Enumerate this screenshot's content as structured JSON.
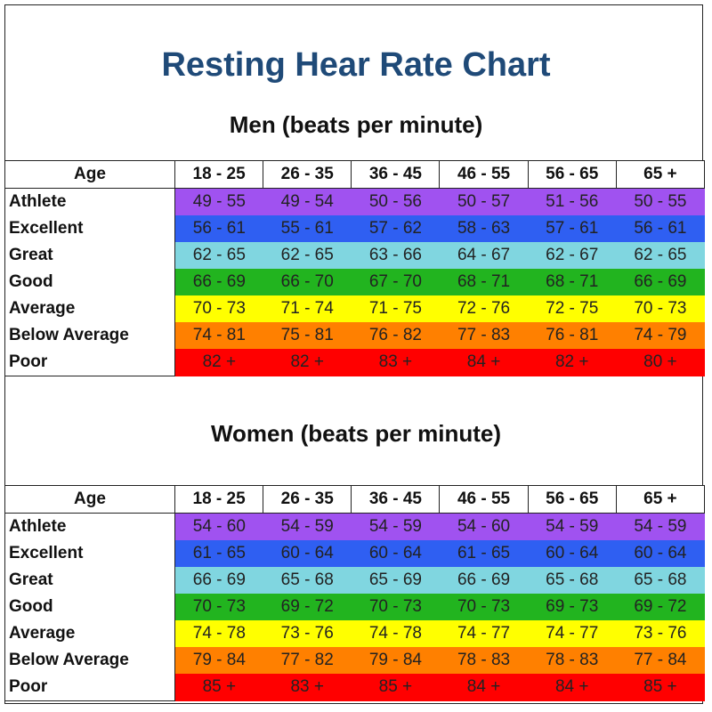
{
  "title": "Resting Hear Rate Chart",
  "chart_data": {
    "type": "table",
    "title": "Resting Hear Rate Chart",
    "tables": [
      {
        "subtitle": "Men (beats per minute)",
        "header": [
          "Age",
          "18 - 25",
          "26 - 35",
          "36 - 45",
          "46 - 55",
          "56 - 65",
          "65 +"
        ],
        "rows": [
          {
            "label": "Athlete",
            "values": [
              "49 - 55",
              "49 - 54",
              "50 - 56",
              "50 - 57",
              "51 - 56",
              "50 - 55"
            ]
          },
          {
            "label": "Excellent",
            "values": [
              "56 - 61",
              "55 - 61",
              "57 - 62",
              "58 - 63",
              "57 - 61",
              "56 - 61"
            ]
          },
          {
            "label": "Great",
            "values": [
              "62 - 65",
              "62 - 65",
              "63 - 66",
              "64 - 67",
              "62 - 67",
              "62 - 65"
            ]
          },
          {
            "label": "Good",
            "values": [
              "66 - 69",
              "66 - 70",
              "67 - 70",
              "68 - 71",
              "68 - 71",
              "66 - 69"
            ]
          },
          {
            "label": "Average",
            "values": [
              "70 - 73",
              "71 - 74",
              "71 - 75",
              "72 - 76",
              "72 - 75",
              "70 - 73"
            ]
          },
          {
            "label": "Below Average",
            "values": [
              "74 - 81",
              "75 - 81",
              "76 - 82",
              "77 - 83",
              "76 - 81",
              "74 - 79"
            ]
          },
          {
            "label": "Poor",
            "values": [
              "82 +",
              "82 +",
              "83 +",
              "84 +",
              "82 +",
              "80 +"
            ]
          }
        ]
      },
      {
        "subtitle": "Women (beats per minute)",
        "header": [
          "Age",
          "18 - 25",
          "26 - 35",
          "36 - 45",
          "46 - 55",
          "56 - 65",
          "65 +"
        ],
        "rows": [
          {
            "label": "Athlete",
            "values": [
              "54 - 60",
              "54 - 59",
              "54 - 59",
              "54 - 60",
              "54 - 59",
              "54 - 59"
            ]
          },
          {
            "label": "Excellent",
            "values": [
              "61 - 65",
              "60 - 64",
              "60 - 64",
              "61 - 65",
              "60 - 64",
              "60 - 64"
            ]
          },
          {
            "label": "Great",
            "values": [
              "66 - 69",
              "65 - 68",
              "65 - 69",
              "66 - 69",
              "65 - 68",
              "65 - 68"
            ]
          },
          {
            "label": "Good",
            "values": [
              "70 - 73",
              "69 - 72",
              "70 - 73",
              "70 - 73",
              "69 - 73",
              "69 - 72"
            ]
          },
          {
            "label": "Average",
            "values": [
              "74 - 78",
              "73 - 76",
              "74 - 78",
              "74 - 77",
              "74 - 77",
              "73 - 76"
            ]
          },
          {
            "label": "Below Average",
            "values": [
              "79 - 84",
              "77 - 82",
              "79 - 84",
              "78 - 83",
              "78 - 83",
              "77 - 84"
            ]
          },
          {
            "label": "Poor",
            "values": [
              "85 +",
              "83 +",
              "85 +",
              "84 +",
              "84 +",
              "85 +"
            ]
          }
        ]
      }
    ]
  },
  "colors": {
    "title": "#1f4a78",
    "rows": [
      "#a052f0",
      "#2f5ff2",
      "#80d6e0",
      "#22b41f",
      "#ffff00",
      "#ff8000",
      "#ff0000"
    ]
  }
}
